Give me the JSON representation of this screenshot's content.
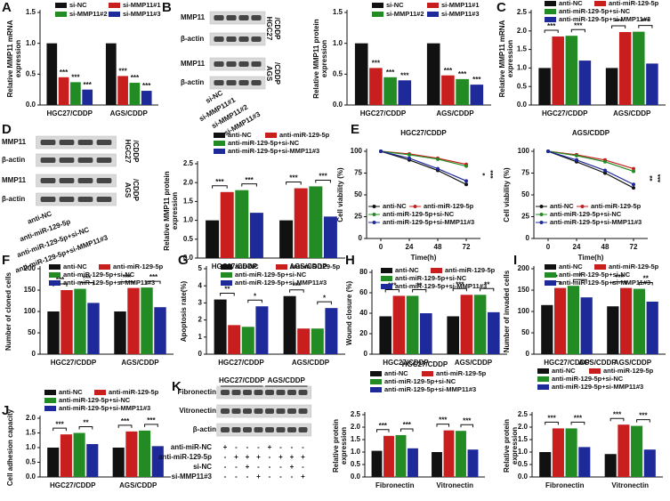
{
  "chart_data": [
    {
      "type": "bar",
      "panel": "A",
      "ylabel": [
        "Relative MMP11 mRNA",
        "expression"
      ],
      "categories": [
        "HGC27/CDDP",
        "AGS/CDDP"
      ],
      "series": [
        {
          "name": "si-NC",
          "color": "#111111",
          "values": [
            1.0,
            1.0
          ]
        },
        {
          "name": "si-MMP11#1",
          "color": "#c81e1e",
          "values": [
            0.45,
            0.47
          ],
          "sig": [
            "***",
            "***"
          ]
        },
        {
          "name": "si-MMP11#2",
          "color": "#238b23",
          "values": [
            0.37,
            0.36
          ],
          "sig": [
            "***",
            "***"
          ]
        },
        {
          "name": "si-MMP11#3",
          "color": "#1f2a9a",
          "values": [
            0.25,
            0.23
          ],
          "sig": [
            "***",
            "***"
          ]
        }
      ],
      "ylim": [
        0,
        1.5
      ],
      "yticks": [
        {
          "value": 0,
          "label": "0.0"
        },
        0.5,
        {
          "value": 1,
          "label": "1.0"
        },
        1.5
      ]
    },
    {
      "type": "blot",
      "panel": "B",
      "rows": [
        "MMP11",
        "β-actin",
        "MMP11",
        "β-actin"
      ],
      "groups": [
        [
          "HGC27",
          "/CDDP"
        ],
        [
          "AGS",
          "/CDDP"
        ]
      ],
      "lanes": [
        "si-NC",
        "si-MMP11#1",
        "si-MMP11#2",
        "si-MMP11#3"
      ]
    },
    {
      "type": "bar",
      "ylabel": [
        "Relative MMP11 protein",
        "expression"
      ],
      "categories": [
        "HGC27/CDDP",
        "AGS/CDDP"
      ],
      "series": [
        {
          "name": "si-NC",
          "color": "#111111",
          "values": [
            1.0,
            1.0
          ]
        },
        {
          "name": "si-MMP11#1",
          "color": "#c81e1e",
          "values": [
            0.6,
            0.48
          ],
          "sig": [
            "***",
            "***"
          ]
        },
        {
          "name": "si-MMP11#2",
          "color": "#238b23",
          "values": [
            0.45,
            0.42
          ],
          "sig": [
            "***",
            "***"
          ]
        },
        {
          "name": "si-MMP11#3",
          "color": "#1f2a9a",
          "values": [
            0.4,
            0.33
          ],
          "sig": [
            "***",
            "***"
          ]
        }
      ],
      "ylim": [
        0,
        1.5
      ],
      "yticks": [
        {
          "value": 0,
          "label": "0.0"
        },
        0.5,
        {
          "value": 1,
          "label": "1.0"
        },
        1.5
      ]
    },
    {
      "type": "bar",
      "panel": "C",
      "ylabel": [
        "Relative MMP11 mRNA",
        "expression"
      ],
      "categories": [
        "HGC27/CDDP",
        "AGS/CDDP"
      ],
      "series": [
        {
          "name": "anti-NC",
          "color": "#111111",
          "values": [
            1.0,
            1.0
          ]
        },
        {
          "name": "anti-miR-129-5p",
          "color": "#c81e1e",
          "values": [
            1.85,
            1.97
          ]
        },
        {
          "name": "anti-miR-129-5p+si-NC",
          "color": "#238b23",
          "values": [
            1.87,
            1.98
          ]
        },
        {
          "name": "anti-miR-129-5p+si-MMP11#3",
          "color": "#1f2a9a",
          "values": [
            1.2,
            1.12
          ]
        }
      ],
      "sig": [
        [
          "***",
          "***"
        ],
        [
          "***",
          "***"
        ]
      ],
      "ylim": [
        0,
        2.5
      ],
      "yticks": [
        {
          "value": 0,
          "label": "0.0"
        },
        0.5,
        {
          "value": 1,
          "label": "1.0"
        },
        1.5,
        {
          "value": 2,
          "label": "2.0"
        },
        2.5
      ]
    },
    {
      "type": "blot",
      "panel": "D",
      "rows": [
        "MMP11",
        "β-actin",
        "MMP11",
        "β-actin"
      ],
      "groups": [
        [
          "HGC27",
          "/CDDP"
        ],
        [
          "AGS",
          "/CDDP"
        ]
      ],
      "lanes": [
        "anti-NC",
        "anti-miR-129-5p",
        "anti-miR-129-5p+si-NC",
        "anti-miR-129-5p+si-MMP11#3"
      ]
    },
    {
      "type": "bar",
      "ylabel": [
        "Relative MMP11 protein",
        "expression"
      ],
      "categories": [
        "HGC27/CDDP",
        "AGS/CDDP"
      ],
      "series": [
        {
          "name": "anti-NC",
          "color": "#111111",
          "values": [
            1.0,
            1.0
          ]
        },
        {
          "name": "anti-miR-129-5p",
          "color": "#c81e1e",
          "values": [
            1.75,
            1.85
          ]
        },
        {
          "name": "anti-miR-129-5p+si-NC",
          "color": "#238b23",
          "values": [
            1.8,
            1.9
          ]
        },
        {
          "name": "anti-miR-129-5p+si-MMP11#3",
          "color": "#1f2a9a",
          "values": [
            1.2,
            1.1
          ]
        }
      ],
      "sig": [
        [
          "***",
          "***"
        ],
        [
          "***",
          "***"
        ]
      ],
      "ylim": [
        0,
        2.5
      ],
      "yticks": [
        {
          "value": 0,
          "label": "0.0"
        },
        0.5,
        {
          "value": 1,
          "label": "1.0"
        },
        1.5,
        {
          "value": 2,
          "label": "2.0"
        },
        2.5
      ]
    },
    {
      "type": "line",
      "panel": "E",
      "title": "HGC27/CDDP",
      "xlabel": "Time(h)",
      "ylabel": [
        "Cell viability (%)"
      ],
      "x": [
        0,
        24,
        48,
        72
      ],
      "series": [
        {
          "name": "anti-NC",
          "color": "#111111",
          "values": [
            100,
            90,
            78,
            62
          ]
        },
        {
          "name": "anti-miR-129-5p",
          "color": "#c81e1e",
          "values": [
            100,
            97,
            92,
            85
          ]
        },
        {
          "name": "anti-miR-129-5p+si-NC",
          "color": "#238b23",
          "values": [
            100,
            96,
            91,
            83
          ]
        },
        {
          "name": "anti-miR-129-5p+si-MMP11#3",
          "color": "#1f2a9a",
          "values": [
            100,
            92,
            80,
            66
          ]
        }
      ],
      "sig": [
        "*",
        "***"
      ],
      "xlim": [
        -12,
        84
      ],
      "xticks": [
        0,
        24,
        48,
        72
      ],
      "ylim": [
        0,
        100
      ],
      "yticks": [
        0,
        25,
        50,
        75,
        100
      ]
    },
    {
      "type": "line",
      "title": "AGS/CDDP",
      "xlabel": "Time(h)",
      "ylabel": [
        "Cell viability (%)"
      ],
      "x": [
        0,
        24,
        48,
        72
      ],
      "series": [
        {
          "name": "anti-NC",
          "color": "#111111",
          "values": [
            100,
            88,
            75,
            58
          ]
        },
        {
          "name": "anti-miR-129-5p",
          "color": "#c81e1e",
          "values": [
            100,
            96,
            90,
            80
          ]
        },
        {
          "name": "anti-miR-129-5p+si-NC",
          "color": "#238b23",
          "values": [
            100,
            95,
            88,
            77
          ]
        },
        {
          "name": "anti-miR-129-5p+si-MMP11#3",
          "color": "#1f2a9a",
          "values": [
            100,
            90,
            78,
            62
          ]
        }
      ],
      "sig": [
        "**",
        "***"
      ],
      "xlim": [
        -12,
        84
      ],
      "xticks": [
        0,
        24,
        48,
        72
      ],
      "ylim": [
        0,
        100
      ],
      "yticks": [
        0,
        25,
        50,
        75,
        100
      ]
    },
    {
      "type": "bar",
      "panel": "F",
      "ylabel": [
        "Number of cloned cells"
      ],
      "categories": [
        "HGC27/CDDP",
        "AGS/CDDP"
      ],
      "series": [
        {
          "name": "anti-NC",
          "color": "#111111",
          "values": [
            100,
            100
          ]
        },
        {
          "name": "anti-miR-129-5p",
          "color": "#c81e1e",
          "values": [
            150,
            155
          ]
        },
        {
          "name": "anti-miR-129-5p+si-NC",
          "color": "#238b23",
          "values": [
            153,
            156
          ]
        },
        {
          "name": "anti-miR-129-5p+si-MMP11#3",
          "color": "#1f2a9a",
          "values": [
            120,
            110
          ]
        }
      ],
      "sig": [
        [
          "***",
          "***"
        ],
        [
          "***",
          "***"
        ]
      ],
      "ylim": [
        0,
        200
      ],
      "yticks": [
        0,
        50,
        100,
        150,
        200
      ]
    },
    {
      "type": "bar",
      "panel": "G",
      "ylabel": [
        "Apoptosis rate(%)"
      ],
      "categories": [
        "HGC27/CDDP",
        "AGS/CDDP"
      ],
      "series": [
        {
          "name": "anti-NC",
          "color": "#111111",
          "values": [
            3.2,
            3.4
          ]
        },
        {
          "name": "anti-miR-129-5p",
          "color": "#c81e1e",
          "values": [
            1.7,
            1.5
          ]
        },
        {
          "name": "anti-miR-129-5p+si-NC",
          "color": "#238b23",
          "values": [
            1.6,
            1.5
          ]
        },
        {
          "name": "anti-miR-129-5p+si-MMP11#3",
          "color": "#1f2a9a",
          "values": [
            2.8,
            2.7
          ]
        }
      ],
      "sig": [
        [
          "**",
          "*"
        ],
        [
          "***",
          "*"
        ]
      ],
      "ylim": [
        0,
        5
      ],
      "yticks": [
        0,
        1,
        2,
        3,
        4,
        5
      ]
    },
    {
      "type": "bar",
      "panel": "H",
      "ylabel": [
        "Wound closure (%)"
      ],
      "categories": [
        "HGC27/CDDP",
        "AGS/CDDP"
      ],
      "series": [
        {
          "name": "anti-NC",
          "color": "#111111",
          "values": [
            37,
            37
          ]
        },
        {
          "name": "anti-miR-129-5p",
          "color": "#c81e1e",
          "values": [
            57,
            58
          ]
        },
        {
          "name": "anti-miR-129-5p+si-NC",
          "color": "#238b23",
          "values": [
            57,
            58
          ]
        },
        {
          "name": "anti-miR-129-5p+si-MMP11#3",
          "color": "#1f2a9a",
          "values": [
            40,
            41
          ]
        }
      ],
      "sig": [
        [
          "***",
          "**"
        ],
        [
          "***",
          "**"
        ]
      ],
      "ylim": [
        0,
        80
      ],
      "yticks": [
        0,
        20,
        40,
        60,
        80
      ]
    },
    {
      "type": "bar",
      "panel": "I",
      "ylabel": [
        "Number of invaded cells"
      ],
      "categories": [
        "HGC27/CDDP",
        "AGS/CDDP"
      ],
      "series": [
        {
          "name": "anti-NC",
          "color": "#111111",
          "values": [
            115,
            112
          ]
        },
        {
          "name": "anti-miR-129-5p",
          "color": "#c81e1e",
          "values": [
            155,
            155
          ]
        },
        {
          "name": "anti-miR-129-5p+si-NC",
          "color": "#238b23",
          "values": [
            160,
            153
          ]
        },
        {
          "name": "anti-miR-129-5p+si-MMP11#3",
          "color": "#1f2a9a",
          "values": [
            133,
            123
          ]
        }
      ],
      "sig": [
        [
          "***",
          "*"
        ],
        [
          "***",
          "**"
        ]
      ],
      "ylim": [
        0,
        200
      ],
      "yticks": [
        0,
        50,
        100,
        150,
        200
      ]
    },
    {
      "type": "bar",
      "panel": "J",
      "ylabel": [
        "Cell adhesion capacity"
      ],
      "categories": [
        "HGC27/CDDP",
        "AGS/CDDP"
      ],
      "series": [
        {
          "name": "anti-NC",
          "color": "#111111",
          "values": [
            1.0,
            1.0
          ]
        },
        {
          "name": "anti-miR-129-5p",
          "color": "#c81e1e",
          "values": [
            1.45,
            1.55
          ]
        },
        {
          "name": "anti-miR-129-5p+si-NC",
          "color": "#238b23",
          "values": [
            1.5,
            1.58
          ]
        },
        {
          "name": "anti-miR-129-5p+si-MMP11#3",
          "color": "#1f2a9a",
          "values": [
            1.12,
            1.05
          ]
        }
      ],
      "sig": [
        [
          "***",
          "**"
        ],
        [
          "***",
          "***"
        ]
      ],
      "ylim": [
        0,
        2
      ],
      "yticks": [
        {
          "value": 0,
          "label": "0.0"
        },
        0.5,
        {
          "value": 1,
          "label": "1.0"
        },
        1.5,
        {
          "value": 2,
          "label": "2.0"
        }
      ]
    },
    {
      "type": "blot",
      "panel": "K",
      "rows": [
        "Fibronectin",
        "Vitronectin",
        "β-actin"
      ],
      "groups": [
        [
          "HGC27/CDDP"
        ],
        [
          "AGS/CDDP"
        ]
      ],
      "conditions": [
        {
          "name": "anti-miR-NC",
          "marks": [
            "+",
            "-",
            "-",
            "-",
            "+",
            "-",
            "-",
            "-"
          ]
        },
        {
          "name": "anti-miR-129-5p",
          "marks": [
            "-",
            "+",
            "+",
            "+",
            "-",
            "+",
            "+",
            "+"
          ]
        },
        {
          "name": "si-NC",
          "marks": [
            "-",
            "-",
            "+",
            "-",
            "-",
            "-",
            "+",
            "-"
          ]
        },
        {
          "name": "si-MMP11#3",
          "marks": [
            "-",
            "-",
            "-",
            "+",
            "-",
            "-",
            "-",
            "+"
          ]
        }
      ]
    },
    {
      "type": "bar",
      "title": "HGC27/CDDP",
      "ylabel": [
        "Relative protein",
        "expression"
      ],
      "categories": [
        "Fibronectin",
        "Vitronectin"
      ],
      "series": [
        {
          "name": "anti-NC",
          "color": "#111111",
          "values": [
            1.05,
            1.0
          ]
        },
        {
          "name": "anti-miR-129-5p",
          "color": "#c81e1e",
          "values": [
            1.65,
            1.87
          ]
        },
        {
          "name": "anti-miR-129-5p+si-NC",
          "color": "#238b23",
          "values": [
            1.68,
            1.85
          ]
        },
        {
          "name": "anti-miR-129-5p+si-MMP11#3",
          "color": "#1f2a9a",
          "values": [
            1.15,
            1.1
          ]
        }
      ],
      "sig": [
        [
          "***",
          "***"
        ],
        [
          "***",
          "***"
        ]
      ],
      "ylim": [
        0,
        2.5
      ],
      "yticks": [
        {
          "value": 0,
          "label": "0.0"
        },
        0.5,
        {
          "value": 1,
          "label": "1.0"
        },
        1.5,
        {
          "value": 2,
          "label": "2.0"
        },
        2.5
      ]
    },
    {
      "type": "bar",
      "title": "AGS/CDDP",
      "ylabel": [
        "Relative protein",
        "expression"
      ],
      "categories": [
        "Fibronectin",
        "Vitronectin"
      ],
      "series": [
        {
          "name": "anti-NC",
          "color": "#111111",
          "values": [
            1.0,
            0.92
          ]
        },
        {
          "name": "anti-miR-129-5p",
          "color": "#c81e1e",
          "values": [
            1.95,
            2.1
          ]
        },
        {
          "name": "anti-miR-129-5p+si-NC",
          "color": "#238b23",
          "values": [
            1.95,
            2.05
          ]
        },
        {
          "name": "anti-miR-129-5p+si-MMP11#3",
          "color": "#1f2a9a",
          "values": [
            1.2,
            1.1
          ]
        }
      ],
      "sig": [
        [
          "***",
          "***"
        ],
        [
          "***",
          "***"
        ]
      ],
      "ylim": [
        0,
        2.5
      ],
      "yticks": [
        {
          "value": 0,
          "label": "0.0"
        },
        0.5,
        {
          "value": 1,
          "label": "1.0"
        },
        1.5,
        {
          "value": 2,
          "label": "2.0"
        },
        2.5
      ]
    }
  ]
}
